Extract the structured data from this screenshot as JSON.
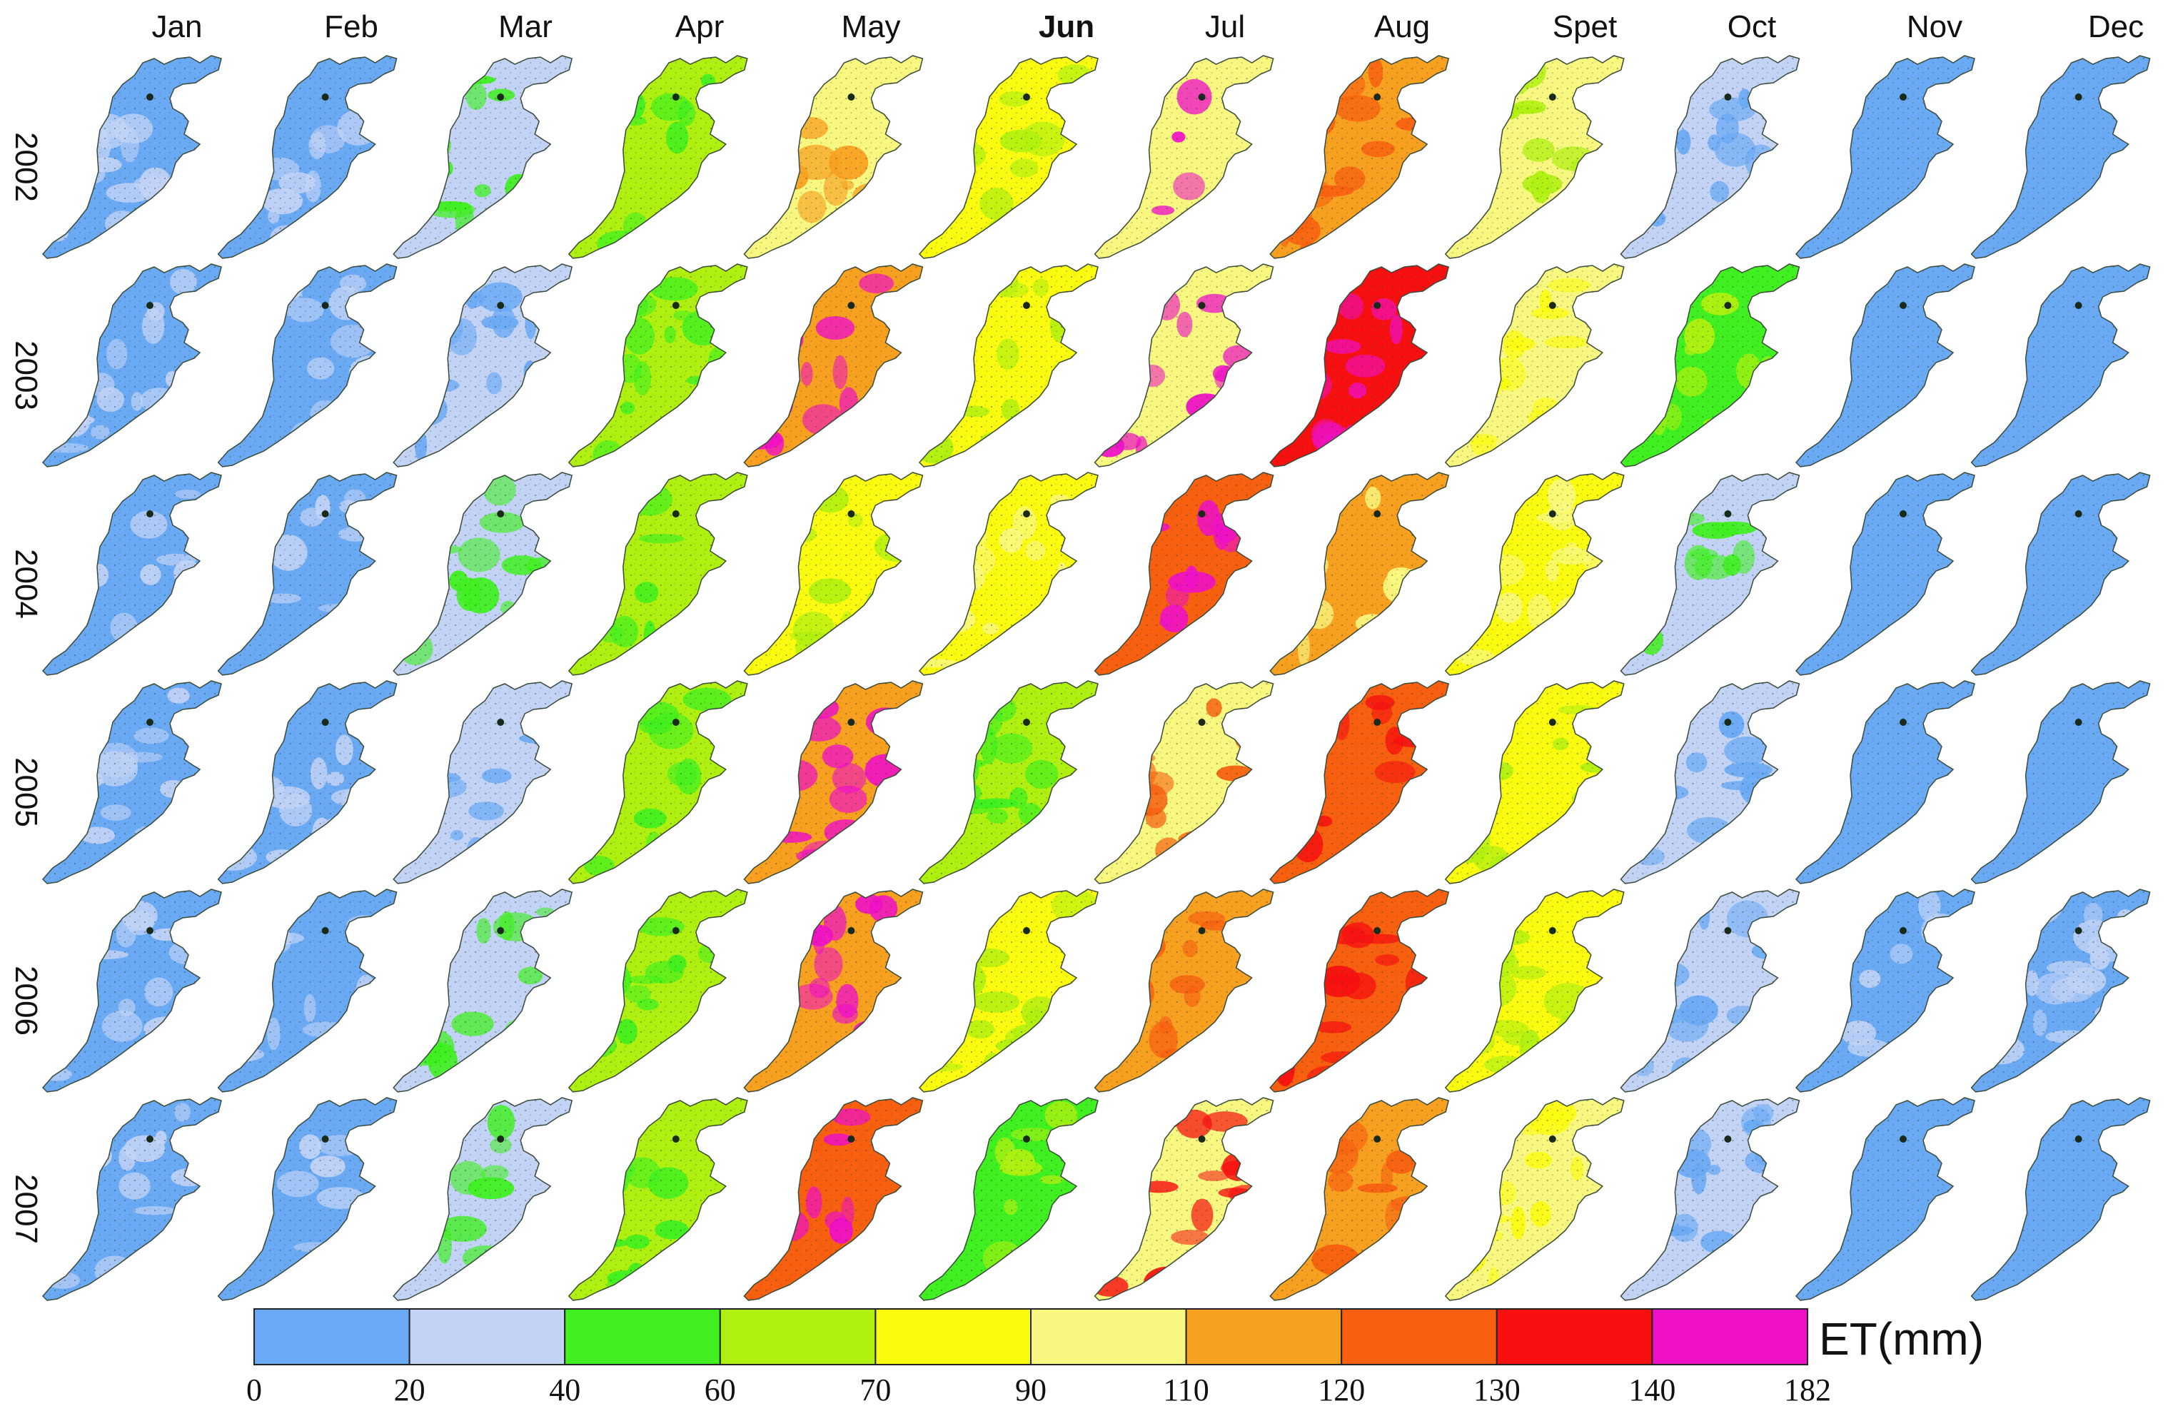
{
  "months": [
    "Jan",
    "Feb",
    "Mar",
    "Apr",
    "May",
    "Jun",
    "Jul",
    "Aug",
    "Spet",
    "Oct",
    "Nov",
    "Dec"
  ],
  "years": [
    "2002",
    "2003",
    "2004",
    "2005",
    "2006",
    "2007"
  ],
  "legend": {
    "title": "ET(mm)",
    "ticks": [
      "0",
      "20",
      "40",
      "60",
      "70",
      "90",
      "110",
      "120",
      "130",
      "140",
      "182"
    ],
    "colors": [
      "#6aaaf5",
      "#c2d3f6",
      "#40f020",
      "#b0f010",
      "#fbfb10",
      "#f8f880",
      "#f8a020",
      "#f86010",
      "#f81010",
      "#f010c8"
    ]
  },
  "map_grid": {
    "comment_class_index": "0..9 = legend color bins; dominant class per month-year map",
    "dominant_class": [
      [
        0,
        0,
        1,
        3,
        5,
        4,
        5,
        6,
        5,
        1,
        0,
        0
      ],
      [
        0,
        0,
        1,
        3,
        6,
        4,
        5,
        8,
        5,
        2,
        0,
        0
      ],
      [
        0,
        0,
        1,
        3,
        4,
        4,
        7,
        6,
        4,
        1,
        0,
        0
      ],
      [
        0,
        0,
        1,
        3,
        6,
        3,
        5,
        7,
        4,
        1,
        0,
        0
      ],
      [
        0,
        0,
        1,
        3,
        6,
        4,
        6,
        7,
        4,
        1,
        0,
        0
      ],
      [
        0,
        0,
        1,
        3,
        7,
        2,
        5,
        6,
        5,
        1,
        0,
        0
      ]
    ],
    "secondary_class": [
      [
        1,
        1,
        2,
        2,
        6,
        3,
        9,
        7,
        3,
        0,
        0,
        0
      ],
      [
        1,
        1,
        0,
        2,
        9,
        3,
        9,
        9,
        4,
        3,
        0,
        0
      ],
      [
        1,
        1,
        2,
        2,
        3,
        5,
        9,
        5,
        5,
        2,
        0,
        0
      ],
      [
        1,
        1,
        0,
        2,
        9,
        2,
        7,
        8,
        3,
        0,
        0,
        0
      ],
      [
        1,
        1,
        2,
        2,
        9,
        3,
        7,
        8,
        3,
        0,
        1,
        1
      ],
      [
        1,
        1,
        2,
        2,
        9,
        3,
        8,
        7,
        4,
        0,
        0,
        0
      ]
    ]
  }
}
